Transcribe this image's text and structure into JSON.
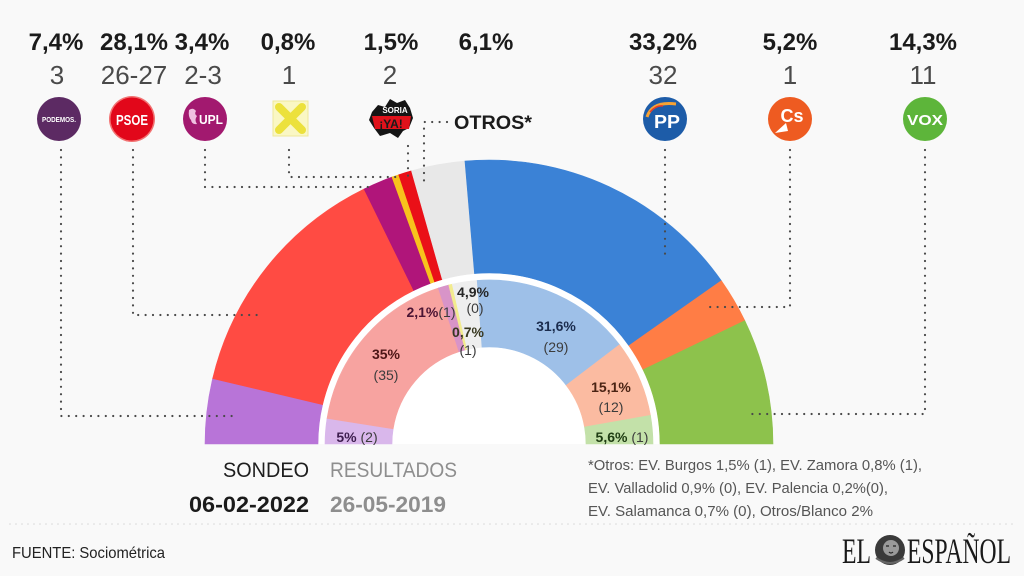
{
  "parties": [
    {
      "id": "podemos",
      "logo_text": "PODEMOS.",
      "pct": "7,4%",
      "seats": "3"
    },
    {
      "id": "psoe",
      "logo_text": "PSOE",
      "pct": "28,1%",
      "seats": "26-27"
    },
    {
      "id": "upl",
      "logo_text": "UPL",
      "pct": "3,4%",
      "seats": "2-3"
    },
    {
      "id": "xav",
      "logo_text": "",
      "pct": "0,8%",
      "seats": "1"
    },
    {
      "id": "soria-ya",
      "logo_text": "SORIA",
      "logo_text_2": "¡YA!",
      "pct": "1,5%",
      "seats": "2"
    },
    {
      "id": "otros",
      "label": "OTROS*",
      "pct": "6,1%"
    },
    {
      "id": "pp",
      "logo_text": "PP",
      "pct": "33,2%",
      "seats": "32"
    },
    {
      "id": "cs",
      "logo_text": "Cs",
      "pct": "5,2%",
      "seats": "1"
    },
    {
      "id": "vox",
      "logo_text": "VOX",
      "pct": "14,3%",
      "seats": "11"
    }
  ],
  "legend": {
    "sondeo_label": "SONDEO",
    "sondeo_date": "06-02-2022",
    "resultados_label": "RESULTADOS",
    "resultados_date": "26-05-2019"
  },
  "footnote": [
    "*Otros: EV. Burgos 1,5% (1), EV. Zamora 0,8% (1),",
    "EV. Valladolid 0,9% (0), EV. Palencia 0,2%(0),",
    "EV. Salamanca 0,7% (0),  Otros/Blanco 2%"
  ],
  "source": "FUENTE: Sociométrica",
  "brand": {
    "left": "EL",
    "right": "ESPAÑOL"
  },
  "chart_data": {
    "type": "pie",
    "subtype": "semicircle double donut (hemicycle)",
    "title": "",
    "series": [
      {
        "name": "SONDEO",
        "date": "06-02-2022",
        "ring": "outer",
        "categories": [
          "Podemos",
          "PSOE",
          "UPL",
          "XAV",
          "Soria ¡Ya!",
          "Otros",
          "PP",
          "Cs",
          "VOX"
        ],
        "values": [
          7.4,
          28.1,
          3.4,
          0.8,
          1.5,
          6.1,
          33.2,
          5.2,
          14.3
        ],
        "seats": [
          "3",
          "26-27",
          "2-3",
          "1",
          "2",
          null,
          "32",
          "1",
          "11"
        ],
        "colors": [
          "#b874d8",
          "#ff4b43",
          "#b0157a",
          "#f8c21c",
          "#ea1018",
          "#e8e8e8",
          "#3b82d6",
          "#ff7d45",
          "#8dc24c"
        ]
      },
      {
        "name": "RESULTADOS",
        "date": "26-05-2019",
        "ring": "inner",
        "categories": [
          "Podemos",
          "PSOE",
          "UPL",
          "XAV",
          "Otros",
          "PP",
          "Cs",
          "VOX"
        ],
        "values": [
          5,
          35,
          2.1,
          0.7,
          4.9,
          31.6,
          15.1,
          5.6
        ],
        "seats": [
          2,
          35,
          1,
          1,
          0,
          29,
          12,
          1
        ],
        "labels": [
          {
            "pct": "5%",
            "seats": "(2)"
          },
          {
            "pct": "35%",
            "seats": "(35)"
          },
          {
            "pct": "2,1%",
            "seats": "(1)"
          },
          {
            "pct": "0,7%",
            "seats": "(1)"
          },
          {
            "pct": "4,9%",
            "seats": "(0)"
          },
          {
            "pct": "31,6%",
            "seats": "(29)"
          },
          {
            "pct": "15,1%",
            "seats": "(12)"
          },
          {
            "pct": "5,6%",
            "seats": "(1)"
          }
        ],
        "colors": [
          "#d9b7eb",
          "#f7a3a0",
          "#d894c8",
          "#f2eb8f",
          "#eeeeee",
          "#9ec0e8",
          "#fbbba1",
          "#c3e1a9"
        ]
      }
    ]
  }
}
